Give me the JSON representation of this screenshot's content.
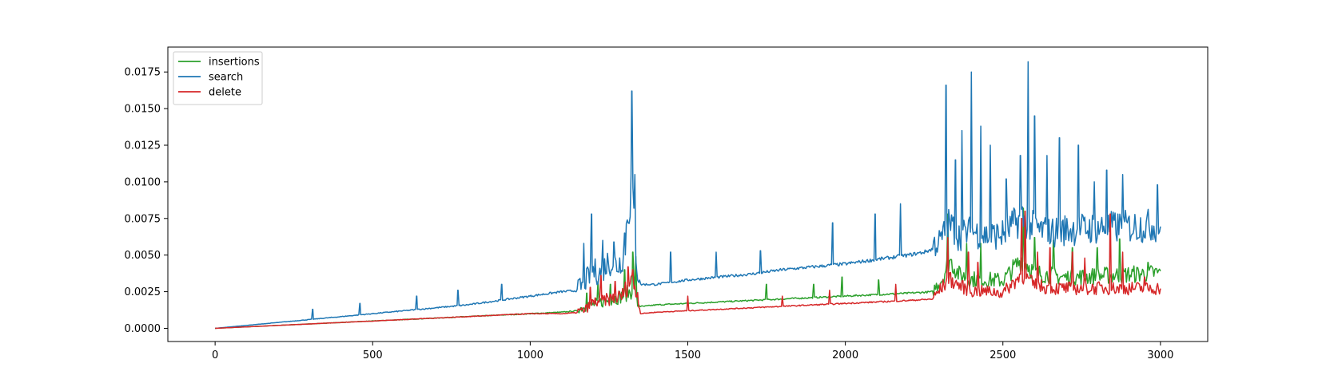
{
  "chart_data": {
    "type": "line",
    "title": "",
    "xlabel": "",
    "ylabel": "",
    "xlim": [
      -150,
      3150
    ],
    "ylim": [
      -0.0009,
      0.0192
    ],
    "x_ticks": [
      0,
      500,
      1000,
      1500,
      2000,
      2500,
      3000
    ],
    "x_tick_labels": [
      "0",
      "500",
      "1000",
      "1500",
      "2000",
      "2500",
      "3000"
    ],
    "y_ticks": [
      0,
      0.0025,
      0.005,
      0.0075,
      0.01,
      0.0125,
      0.015,
      0.0175
    ],
    "y_tick_labels": [
      "0.0000",
      "0.0025",
      "0.0050",
      "0.0075",
      "0.0100",
      "0.0125",
      "0.0150",
      "0.0175"
    ],
    "grid": false,
    "legend_position": "top-left",
    "series": [
      {
        "name": "insertions",
        "color": "#2ca02c",
        "x": [
          0,
          100,
          200,
          300,
          400,
          500,
          600,
          700,
          800,
          900,
          1000,
          1100,
          1150,
          1190,
          1220,
          1260,
          1290,
          1320,
          1330,
          1340,
          1360,
          1400,
          1500,
          1600,
          1700,
          1800,
          1900,
          2000,
          2100,
          2200,
          2280,
          2310,
          2330,
          2360,
          2400,
          2500,
          2560,
          2580,
          2600,
          2700,
          2800,
          2900,
          3000
        ],
        "y": [
          0,
          0.0001,
          0.0002,
          0.0003,
          0.0004,
          0.0005,
          0.0006,
          0.0007,
          0.0008,
          0.0009,
          0.001,
          0.0011,
          0.0012,
          0.0014,
          0.0016,
          0.0018,
          0.002,
          0.0023,
          0.003,
          0.0015,
          0.0015,
          0.0016,
          0.0017,
          0.0018,
          0.0019,
          0.002,
          0.0021,
          0.0022,
          0.0023,
          0.0024,
          0.0025,
          0.0033,
          0.0045,
          0.0035,
          0.0032,
          0.0031,
          0.0045,
          0.0041,
          0.0036,
          0.0033,
          0.0034,
          0.0035,
          0.0036
        ],
        "spikes": [
          {
            "x": 1180,
            "y": 0.0024
          },
          {
            "x": 1215,
            "y": 0.0032
          },
          {
            "x": 1255,
            "y": 0.003
          },
          {
            "x": 1300,
            "y": 0.004
          },
          {
            "x": 1325,
            "y": 0.0052
          },
          {
            "x": 1335,
            "y": 0.0049
          },
          {
            "x": 1750,
            "y": 0.003
          },
          {
            "x": 1900,
            "y": 0.003
          },
          {
            "x": 1990,
            "y": 0.0035
          },
          {
            "x": 2105,
            "y": 0.0033
          },
          {
            "x": 2325,
            "y": 0.0078
          },
          {
            "x": 2385,
            "y": 0.0058
          },
          {
            "x": 2430,
            "y": 0.0058
          },
          {
            "x": 2565,
            "y": 0.0082
          },
          {
            "x": 2600,
            "y": 0.0062
          },
          {
            "x": 2660,
            "y": 0.006
          },
          {
            "x": 2720,
            "y": 0.0055
          },
          {
            "x": 2800,
            "y": 0.0055
          },
          {
            "x": 2870,
            "y": 0.0061
          },
          {
            "x": 2960,
            "y": 0.0045
          }
        ]
      },
      {
        "name": "search",
        "color": "#1f77b4",
        "x": [
          0,
          100,
          200,
          300,
          400,
          500,
          600,
          700,
          800,
          900,
          1000,
          1100,
          1160,
          1170,
          1200,
          1220,
          1250,
          1280,
          1300,
          1310,
          1320,
          1330,
          1340,
          1350,
          1400,
          1500,
          1600,
          1700,
          1800,
          1900,
          2000,
          2100,
          2200,
          2250,
          2300,
          2330,
          2360,
          2400,
          2450,
          2500,
          2560,
          2580,
          2600,
          2650,
          2700,
          2800,
          2900,
          3000
        ],
        "y": [
          0,
          0.0002,
          0.0004,
          0.0006,
          0.0008,
          0.001,
          0.0012,
          0.0014,
          0.0016,
          0.0019,
          0.0022,
          0.0025,
          0.0026,
          0.0028,
          0.0036,
          0.0034,
          0.0042,
          0.0039,
          0.0048,
          0.0075,
          0.0085,
          0.0065,
          0.0035,
          0.003,
          0.003,
          0.0033,
          0.0035,
          0.0037,
          0.004,
          0.0042,
          0.0044,
          0.0047,
          0.005,
          0.0052,
          0.0056,
          0.0068,
          0.006,
          0.0063,
          0.006,
          0.0061,
          0.0072,
          0.0068,
          0.0065,
          0.0062,
          0.0064,
          0.0065,
          0.0066,
          0.0067
        ],
        "spikes": [
          {
            "x": 310,
            "y": 0.0013
          },
          {
            "x": 460,
            "y": 0.0017
          },
          {
            "x": 640,
            "y": 0.0022
          },
          {
            "x": 770,
            "y": 0.0026
          },
          {
            "x": 910,
            "y": 0.003
          },
          {
            "x": 1170,
            "y": 0.0058
          },
          {
            "x": 1195,
            "y": 0.0078
          },
          {
            "x": 1230,
            "y": 0.006
          },
          {
            "x": 1265,
            "y": 0.0059
          },
          {
            "x": 1300,
            "y": 0.0065
          },
          {
            "x": 1322,
            "y": 0.0162
          },
          {
            "x": 1332,
            "y": 0.0105
          },
          {
            "x": 1445,
            "y": 0.0052
          },
          {
            "x": 1590,
            "y": 0.0052
          },
          {
            "x": 1730,
            "y": 0.0053
          },
          {
            "x": 1960,
            "y": 0.0072
          },
          {
            "x": 2095,
            "y": 0.0078
          },
          {
            "x": 2175,
            "y": 0.0085
          },
          {
            "x": 2320,
            "y": 0.0166
          },
          {
            "x": 2350,
            "y": 0.0115
          },
          {
            "x": 2370,
            "y": 0.0135
          },
          {
            "x": 2400,
            "y": 0.0175
          },
          {
            "x": 2430,
            "y": 0.0138
          },
          {
            "x": 2460,
            "y": 0.0125
          },
          {
            "x": 2510,
            "y": 0.0102
          },
          {
            "x": 2555,
            "y": 0.0118
          },
          {
            "x": 2580,
            "y": 0.0182
          },
          {
            "x": 2600,
            "y": 0.0145
          },
          {
            "x": 2640,
            "y": 0.0118
          },
          {
            "x": 2680,
            "y": 0.013
          },
          {
            "x": 2740,
            "y": 0.0125
          },
          {
            "x": 2790,
            "y": 0.01
          },
          {
            "x": 2830,
            "y": 0.0108
          },
          {
            "x": 2880,
            "y": 0.0105
          },
          {
            "x": 2990,
            "y": 0.0098
          }
        ]
      },
      {
        "name": "delete",
        "color": "#d62728",
        "x": [
          0,
          100,
          200,
          300,
          400,
          500,
          600,
          700,
          800,
          900,
          1000,
          1100,
          1170,
          1200,
          1250,
          1290,
          1320,
          1340,
          1350,
          1400,
          1500,
          1600,
          1700,
          1800,
          1900,
          2000,
          2100,
          2200,
          2280,
          2300,
          2330,
          2360,
          2400,
          2450,
          2500,
          2560,
          2600,
          2650,
          2700,
          2800,
          2900,
          3000
        ],
        "y": [
          0,
          0.0001,
          0.0002,
          0.0003,
          0.0004,
          0.0005,
          0.0006,
          0.0007,
          0.0008,
          0.0009,
          0.001,
          0.001,
          0.0011,
          0.0016,
          0.0018,
          0.002,
          0.003,
          0.0022,
          0.001,
          0.0011,
          0.0012,
          0.0013,
          0.0014,
          0.0015,
          0.0016,
          0.0017,
          0.0018,
          0.0019,
          0.002,
          0.0025,
          0.0032,
          0.0028,
          0.0024,
          0.0024,
          0.0023,
          0.0035,
          0.0028,
          0.0026,
          0.0026,
          0.0026,
          0.0026,
          0.0026
        ],
        "spikes": [
          {
            "x": 1190,
            "y": 0.0028
          },
          {
            "x": 1225,
            "y": 0.0036
          },
          {
            "x": 1270,
            "y": 0.0032
          },
          {
            "x": 1310,
            "y": 0.0042
          },
          {
            "x": 1325,
            "y": 0.004
          },
          {
            "x": 1500,
            "y": 0.0022
          },
          {
            "x": 1800,
            "y": 0.0022
          },
          {
            "x": 1950,
            "y": 0.0026
          },
          {
            "x": 2160,
            "y": 0.003
          },
          {
            "x": 2325,
            "y": 0.0062
          },
          {
            "x": 2390,
            "y": 0.0052
          },
          {
            "x": 2420,
            "y": 0.0045
          },
          {
            "x": 2560,
            "y": 0.0075
          },
          {
            "x": 2570,
            "y": 0.008
          },
          {
            "x": 2610,
            "y": 0.0052
          },
          {
            "x": 2650,
            "y": 0.0055
          },
          {
            "x": 2720,
            "y": 0.0052
          },
          {
            "x": 2760,
            "y": 0.0048
          },
          {
            "x": 2840,
            "y": 0.0078
          },
          {
            "x": 2880,
            "y": 0.0052
          },
          {
            "x": 2950,
            "y": 0.0035
          }
        ]
      }
    ]
  }
}
